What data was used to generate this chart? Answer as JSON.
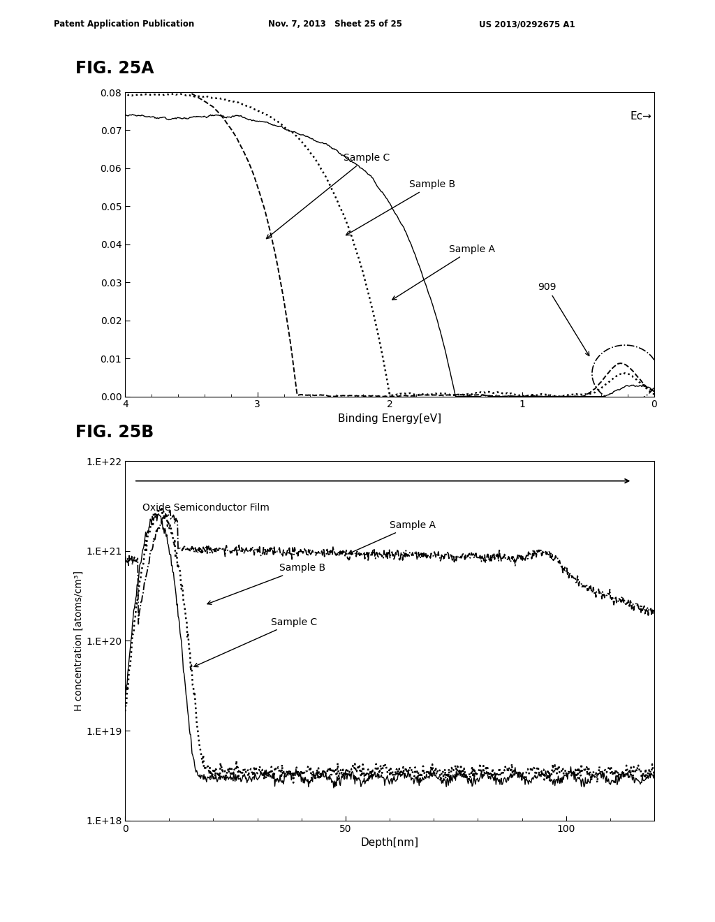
{
  "fig25a_title": "FIG. 25A",
  "fig25b_title": "FIG. 25B",
  "header_left": "Patent Application Publication",
  "header_mid": "Nov. 7, 2013   Sheet 25 of 25",
  "header_right": "US 2013/0292675 A1",
  "fig25a": {
    "xlabel": "Binding Energy[eV]",
    "xlim": [
      4,
      0
    ],
    "ylim": [
      0,
      0.08
    ],
    "yticks": [
      0,
      0.01,
      0.02,
      0.03,
      0.04,
      0.05,
      0.06,
      0.07,
      0.08
    ],
    "xticks": [
      4,
      3,
      2,
      1,
      0
    ],
    "ec_label": "Ec→",
    "annotation_909": "909",
    "sample_a_label": "Sample A",
    "sample_b_label": "Sample B",
    "sample_c_label": "Sample C"
  },
  "fig25b": {
    "xlabel": "Depth[nm]",
    "ylabel": "H concentration [atoms/cm³]",
    "xlim": [
      0,
      120
    ],
    "xticks": [
      0,
      50,
      100
    ],
    "ytick_labels": [
      "1.E+18",
      "1.E+19",
      "1.E+20",
      "1.E+21",
      "1.E+22"
    ],
    "arrow_label": "Oxide Semiconductor Film",
    "sample_a_label": "Sample A",
    "sample_b_label": "Sample B",
    "sample_c_label": "Sample C"
  },
  "background_color": "#ffffff",
  "text_color": "#000000"
}
